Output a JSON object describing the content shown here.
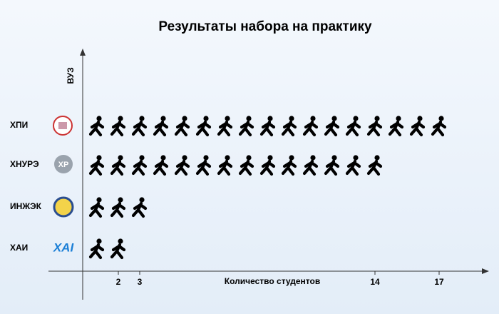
{
  "chart_data": {
    "type": "pictograph",
    "title": "Результаты набора на практику",
    "y_label": "ВУЗ",
    "x_label": "Количество студентов",
    "categories": [
      "ХПИ",
      "ХНУРЭ",
      "ИНЖЭК",
      "ХАИ"
    ],
    "values": [
      17,
      14,
      3,
      2
    ],
    "color": "#000000",
    "xlim": [
      0,
      19
    ],
    "xticks": [
      2,
      3,
      14,
      17
    ]
  }
}
